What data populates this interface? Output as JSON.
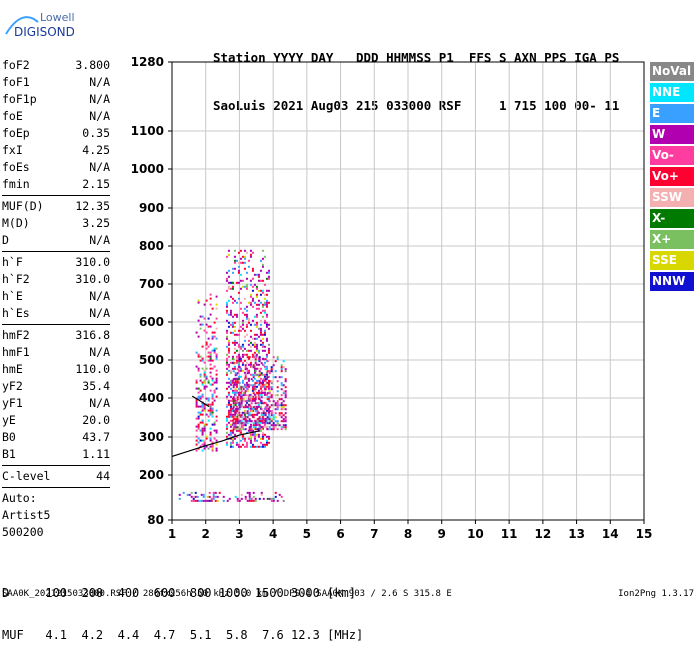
{
  "logo": {
    "line1": "Lowell",
    "line2": "DIGISONDE"
  },
  "header": {
    "row1": "Station YYYY DAY   DDD HHMMSS P1  FFS S AXN PPS IGA PS",
    "row2": "SaoLuis 2021 Aug03 215 033000 RSF     1 715 100 00- 11"
  },
  "params": [
    [
      {
        "k": "foF2",
        "v": "3.800"
      },
      {
        "k": "foF1",
        "v": "N/A"
      },
      {
        "k": "foF1p",
        "v": "N/A"
      },
      {
        "k": "foE",
        "v": "N/A"
      },
      {
        "k": "foEp",
        "v": "0.35"
      },
      {
        "k": "fxI",
        "v": "4.25"
      },
      {
        "k": "foEs",
        "v": "N/A"
      },
      {
        "k": "fmin",
        "v": "2.15"
      }
    ],
    [
      {
        "k": "MUF(D)",
        "v": "12.35"
      },
      {
        "k": "M(D)",
        "v": "3.25"
      },
      {
        "k": "D",
        "v": "N/A"
      }
    ],
    [
      {
        "k": "h`F",
        "v": "310.0"
      },
      {
        "k": "h`F2",
        "v": "310.0"
      },
      {
        "k": "h`E",
        "v": "N/A"
      },
      {
        "k": "h`Es",
        "v": "N/A"
      }
    ],
    [
      {
        "k": "hmF2",
        "v": "316.8"
      },
      {
        "k": "hmF1",
        "v": "N/A"
      },
      {
        "k": "hmE",
        "v": "110.0"
      },
      {
        "k": "yF2",
        "v": "35.4"
      },
      {
        "k": "yF1",
        "v": "N/A"
      },
      {
        "k": "yE",
        "v": "20.0"
      },
      {
        "k": "B0",
        "v": "43.7"
      },
      {
        "k": "B1",
        "v": "1.11"
      }
    ]
  ],
  "clevel": {
    "k": "C-level",
    "v": "44"
  },
  "auto": [
    "Auto:",
    "Artist5",
    "500200"
  ],
  "legend": [
    {
      "label": "NoVal",
      "color": "#888888"
    },
    {
      "label": "NNE",
      "color": "#00e6ff"
    },
    {
      "label": "E",
      "color": "#3aa0ff"
    },
    {
      "label": "W",
      "color": "#b000b0"
    },
    {
      "label": "Vo-",
      "color": "#ff3ca0"
    },
    {
      "label": "Vo+",
      "color": "#ff0030"
    },
    {
      "label": "SSW",
      "color": "#f4b0b0"
    },
    {
      "label": "X-",
      "color": "#007a00"
    },
    {
      "label": "X+",
      "color": "#7ac060"
    },
    {
      "label": "SSE",
      "color": "#d8d800"
    },
    {
      "label": "NNW",
      "color": "#1010d0"
    }
  ],
  "muf_table": {
    "row1": "D     100  200  400  600  800 1000 1500 3000 [km]",
    "row2": "MUF   4.1  4.2  4.4  4.7  5.1  5.8  7.6 12.3 [MHz]"
  },
  "footer": {
    "left": "SAA0K_2021215033000.RSF / 280fx256h 50 kHz 5.0 km / DPS-4 SAA0K 903 / 2.6 S 315.8 E",
    "right": "Ion2Png 1.3.17"
  },
  "chart_data": {
    "type": "scatter",
    "x": {
      "range": [
        1,
        15
      ],
      "ticks": [
        1,
        2,
        3,
        4,
        5,
        6,
        7,
        8,
        9,
        10,
        11,
        12,
        13,
        14,
        15
      ],
      "unit": "MHz"
    },
    "y": {
      "range": [
        80,
        1280
      ],
      "ticks": [
        80,
        200,
        300,
        400,
        500,
        600,
        700,
        800,
        900,
        1000,
        1100,
        1280
      ],
      "unit": "km",
      "scale": "nonlinear"
    },
    "grid": true,
    "trace_color": "#000000",
    "trace_points": [
      [
        1.0,
        249
      ],
      [
        2.0,
        277
      ],
      [
        2.5,
        290
      ],
      [
        3.0,
        305
      ],
      [
        3.6,
        316
      ]
    ],
    "trace_points_o": [
      [
        1.6,
        405
      ],
      [
        1.8,
        394
      ],
      [
        2.1,
        378
      ]
    ],
    "echo_regions": [
      {
        "xmin": 1.7,
        "xmax": 2.3,
        "ymin": 265,
        "ymax": 680,
        "density": 0.45
      },
      {
        "xmin": 2.6,
        "xmax": 3.9,
        "ymin": 275,
        "ymax": 790,
        "density": 0.55
      },
      {
        "xmin": 2.8,
        "xmax": 4.4,
        "ymin": 320,
        "ymax": 510,
        "density": 0.6
      },
      {
        "xmin": 1.2,
        "xmax": 4.3,
        "ymin": 130,
        "ymax": 155,
        "density": 0.5
      }
    ]
  }
}
